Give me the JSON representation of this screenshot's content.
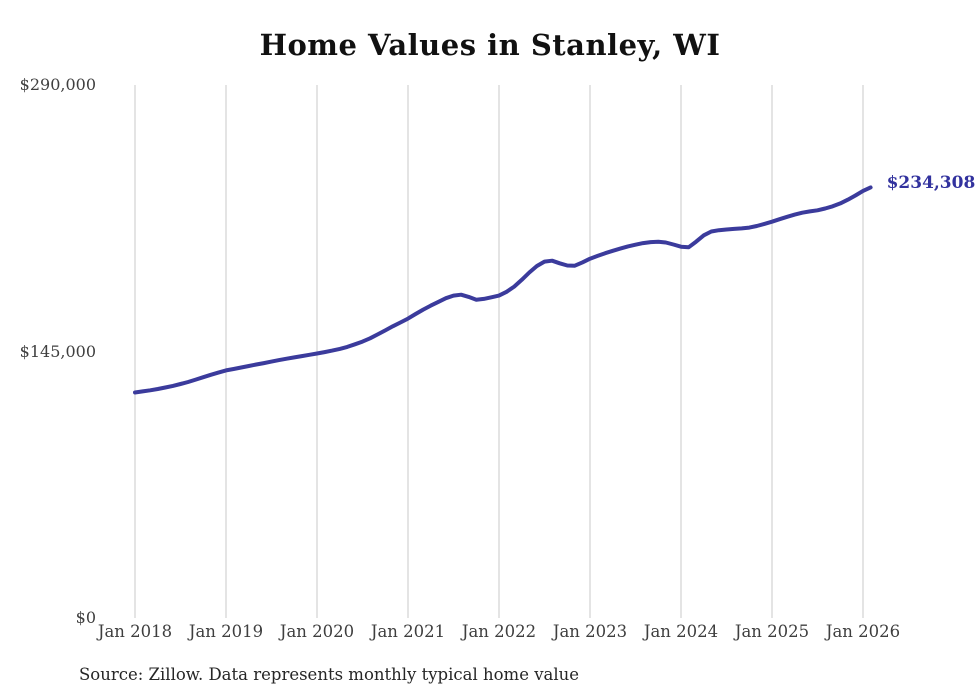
{
  "page": {
    "source_note": "Source: Zillow. Data represents monthly typical home value"
  },
  "chart_data": {
    "type": "line",
    "title": "Home Values in Stanley, WI",
    "xlabel": "",
    "ylabel": "",
    "ylim": [
      0,
      290000
    ],
    "grid": "vertical-yearly",
    "legend": "none",
    "x_ticks": [
      "Jan 2018",
      "Jan 2019",
      "Jan 2020",
      "Jan 2021",
      "Jan 2022",
      "Jan 2023",
      "Jan 2024",
      "Jan 2025",
      "Jan 2026"
    ],
    "y_ticks": [
      {
        "label": "$290,000",
        "value": 290000
      },
      {
        "label": "$145,000",
        "value": 145000
      },
      {
        "label": "$0",
        "value": 0
      }
    ],
    "latest_value": 234308,
    "latest_value_label": "$234,308",
    "series": [
      {
        "name": "Monthly typical home value",
        "start_month": "2018-01",
        "end_month": "2026-02",
        "values": [
          122700,
          123300,
          123900,
          124600,
          125400,
          126300,
          127300,
          128400,
          129700,
          131000,
          132300,
          133500,
          134700,
          135500,
          136300,
          137100,
          137900,
          138700,
          139500,
          140300,
          141100,
          141800,
          142500,
          143200,
          143900,
          144700,
          145500,
          146400,
          147500,
          148900,
          150400,
          152200,
          154300,
          156500,
          158700,
          160800,
          162900,
          165400,
          167800,
          170000,
          172000,
          174000,
          175400,
          175900,
          174700,
          173200,
          173600,
          174500,
          175400,
          177500,
          180300,
          184000,
          188000,
          191500,
          193900,
          194400,
          193000,
          191800,
          191700,
          193500,
          195500,
          197000,
          198500,
          199800,
          201000,
          202200,
          203100,
          204000,
          204500,
          204700,
          204300,
          203200,
          202000,
          201700,
          204800,
          208200,
          210300,
          211000,
          211400,
          211700,
          212000,
          212400,
          213300,
          214400,
          215600,
          217000,
          218300,
          219500,
          220500,
          221200,
          221800,
          222800,
          224000,
          225600,
          227600,
          229900,
          232400,
          234308
        ]
      }
    ],
    "colors": {
      "line": "#3b3b9c",
      "end_label": "#32329e",
      "grid": "#c9c9c9",
      "axis_text": "#3f3f3f",
      "title": "#111111",
      "source": "#262626"
    }
  }
}
